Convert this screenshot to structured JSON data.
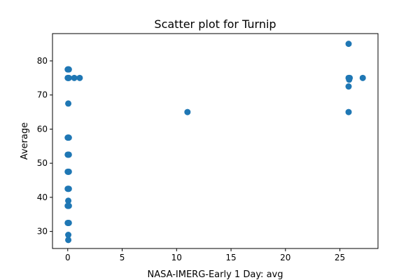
{
  "chart_data": {
    "type": "scatter",
    "title": "Scatter plot for Turnip",
    "xlabel": "NASA-IMERG-Early 1 Day: avg",
    "ylabel": "Average",
    "xlim": [
      -1.4,
      28.5
    ],
    "ylim": [
      25,
      88
    ],
    "xticks": [
      0,
      5,
      10,
      15,
      20,
      25
    ],
    "yticks": [
      30,
      40,
      50,
      60,
      70,
      80
    ],
    "grid": false,
    "marker_color": "#1f77b4",
    "points": [
      {
        "x": 0.0,
        "y": 77.5
      },
      {
        "x": 0.05,
        "y": 77.5
      },
      {
        "x": 0.1,
        "y": 77.5
      },
      {
        "x": 0.0,
        "y": 75.0
      },
      {
        "x": 0.05,
        "y": 75.0
      },
      {
        "x": 0.1,
        "y": 75.0
      },
      {
        "x": 0.6,
        "y": 75.0
      },
      {
        "x": 1.1,
        "y": 75.0
      },
      {
        "x": 0.05,
        "y": 67.5
      },
      {
        "x": 0.0,
        "y": 57.5
      },
      {
        "x": 0.05,
        "y": 57.5
      },
      {
        "x": 0.1,
        "y": 57.5
      },
      {
        "x": 0.0,
        "y": 52.5
      },
      {
        "x": 0.05,
        "y": 52.5
      },
      {
        "x": 0.1,
        "y": 52.5
      },
      {
        "x": 0.0,
        "y": 47.5
      },
      {
        "x": 0.05,
        "y": 47.5
      },
      {
        "x": 0.1,
        "y": 47.5
      },
      {
        "x": 0.0,
        "y": 42.5
      },
      {
        "x": 0.05,
        "y": 42.5
      },
      {
        "x": 0.1,
        "y": 42.5
      },
      {
        "x": 0.05,
        "y": 39.0
      },
      {
        "x": 0.0,
        "y": 37.5
      },
      {
        "x": 0.05,
        "y": 37.5
      },
      {
        "x": 0.1,
        "y": 37.5
      },
      {
        "x": 0.0,
        "y": 32.5
      },
      {
        "x": 0.05,
        "y": 32.5
      },
      {
        "x": 0.1,
        "y": 32.5
      },
      {
        "x": 0.05,
        "y": 29.0
      },
      {
        "x": 0.05,
        "y": 27.5
      },
      {
        "x": 11.0,
        "y": 65.0
      },
      {
        "x": 25.8,
        "y": 85.0
      },
      {
        "x": 25.8,
        "y": 75.0
      },
      {
        "x": 25.9,
        "y": 75.0
      },
      {
        "x": 25.85,
        "y": 74.5
      },
      {
        "x": 25.8,
        "y": 72.5
      },
      {
        "x": 27.1,
        "y": 75.0
      },
      {
        "x": 25.8,
        "y": 65.0
      }
    ]
  }
}
